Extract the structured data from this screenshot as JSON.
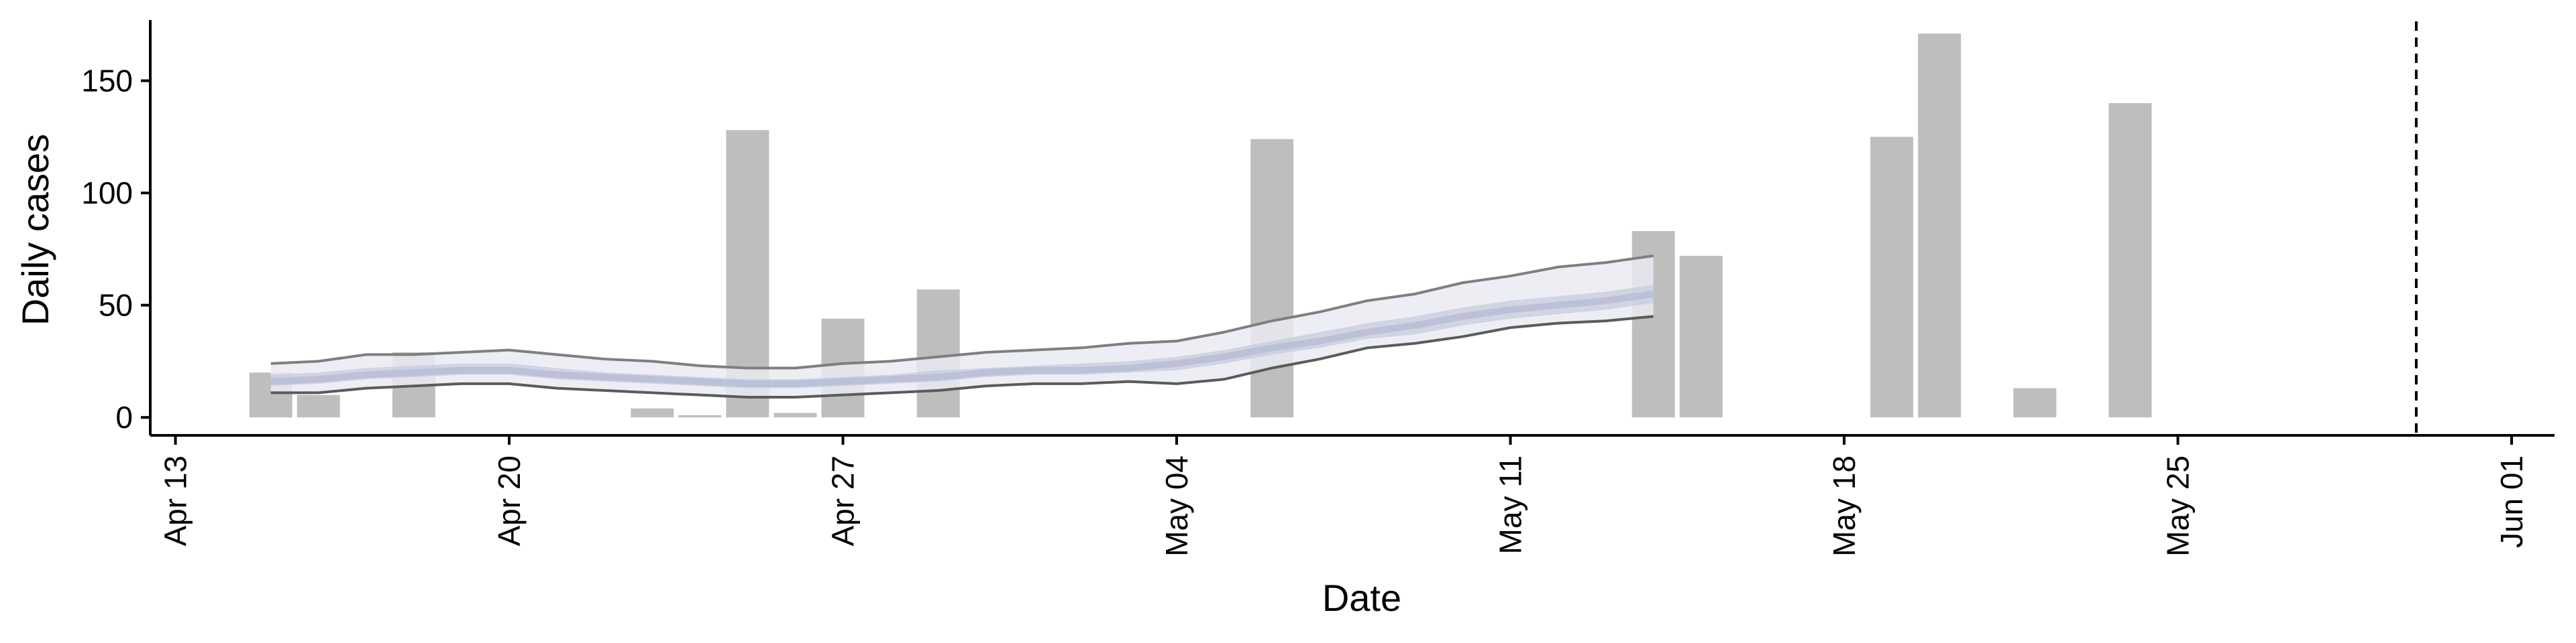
{
  "chart_data": {
    "type": "bar",
    "xlabel": "Date",
    "ylabel": "Daily cases",
    "x_ticks": [
      "Apr 13",
      "Apr 20",
      "Apr 27",
      "May 04",
      "May 11",
      "May 18",
      "May 25",
      "Jun 01"
    ],
    "y_ticks": [
      0,
      50,
      100,
      150
    ],
    "xlim": [
      "2020-04-12",
      "2020-06-01"
    ],
    "ylim": [
      -8,
      180
    ],
    "legend": "none",
    "grid": false,
    "bars": [
      {
        "date": "2020-04-15",
        "value": 20
      },
      {
        "date": "2020-04-16",
        "value": 10
      },
      {
        "date": "2020-04-18",
        "value": 29
      },
      {
        "date": "2020-04-23",
        "value": 4
      },
      {
        "date": "2020-04-24",
        "value": 1
      },
      {
        "date": "2020-04-25",
        "value": 128
      },
      {
        "date": "2020-04-26",
        "value": 2
      },
      {
        "date": "2020-04-27",
        "value": 44
      },
      {
        "date": "2020-04-29",
        "value": 57
      },
      {
        "date": "2020-05-06",
        "value": 124
      },
      {
        "date": "2020-05-14",
        "value": 83
      },
      {
        "date": "2020-05-15",
        "value": 72
      },
      {
        "date": "2020-05-19",
        "value": 125
      },
      {
        "date": "2020-05-20",
        "value": 171
      },
      {
        "date": "2020-05-22",
        "value": 13
      },
      {
        "date": "2020-05-24",
        "value": 140
      }
    ],
    "estimate": {
      "dates": [
        "2020-04-15",
        "2020-04-16",
        "2020-04-17",
        "2020-04-18",
        "2020-04-19",
        "2020-04-20",
        "2020-04-21",
        "2020-04-22",
        "2020-04-23",
        "2020-04-24",
        "2020-04-25",
        "2020-04-26",
        "2020-04-27",
        "2020-04-28",
        "2020-04-29",
        "2020-04-30",
        "2020-05-01",
        "2020-05-02",
        "2020-05-03",
        "2020-05-04",
        "2020-05-05",
        "2020-05-06",
        "2020-05-07",
        "2020-05-08",
        "2020-05-09",
        "2020-05-10",
        "2020-05-11",
        "2020-05-12",
        "2020-05-13",
        "2020-05-14"
      ],
      "outer_upper": [
        24,
        25,
        28,
        28,
        29,
        30,
        28,
        26,
        25,
        23,
        22,
        22,
        24,
        25,
        27,
        29,
        30,
        31,
        33,
        34,
        38,
        43,
        47,
        52,
        55,
        60,
        63,
        67,
        69,
        72
      ],
      "outer_lower": [
        11,
        11,
        13,
        14,
        15,
        15,
        13,
        12,
        11,
        10,
        9,
        9,
        10,
        11,
        12,
        14,
        15,
        15,
        16,
        15,
        17,
        22,
        26,
        31,
        33,
        36,
        40,
        42,
        43,
        45
      ],
      "inner_upper": [
        19,
        20,
        22,
        23,
        24,
        24,
        22,
        20,
        19,
        18,
        17,
        17,
        18,
        19,
        21,
        22,
        23,
        24,
        25,
        27,
        30,
        34,
        38,
        42,
        45,
        49,
        52,
        54,
        56,
        59
      ],
      "inner_lower": [
        14,
        15,
        17,
        18,
        19,
        19,
        17,
        16,
        15,
        14,
        13,
        13,
        14,
        15,
        16,
        18,
        19,
        19,
        20,
        21,
        24,
        28,
        31,
        35,
        37,
        41,
        44,
        46,
        48,
        51
      ],
      "median": [
        16,
        17,
        19,
        20,
        21,
        21,
        19,
        18,
        17,
        16,
        15,
        15,
        16,
        17,
        18,
        20,
        21,
        21,
        22,
        24,
        27,
        31,
        34,
        38,
        41,
        45,
        48,
        50,
        52,
        55
      ]
    },
    "vline_date": "2020-05-30",
    "colors": {
      "bar": "#bebebe",
      "outer_band": "#e9ebf2",
      "inner_band": "#c4c9dc",
      "median_line": "#b9bfd6",
      "upper_line": "#7f7f7f",
      "lower_line": "#5b5b5b",
      "axis": "#000000"
    }
  }
}
